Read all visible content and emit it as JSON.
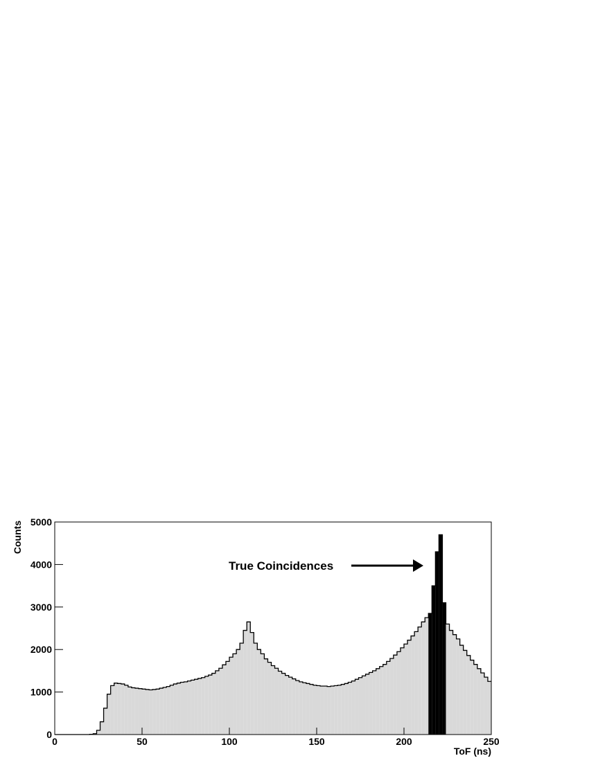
{
  "chart_data": {
    "type": "histogram",
    "xlabel": "ToF (ns)",
    "ylabel": "Counts",
    "annotation": "True Coincidences",
    "color": "#d9d9d9",
    "bins": [
      0,
      2,
      4,
      6,
      8,
      10,
      12,
      14,
      16,
      18,
      20,
      22,
      24,
      26,
      28,
      30,
      32,
      34,
      36,
      38,
      40,
      42,
      44,
      46,
      48,
      50,
      52,
      54,
      56,
      58,
      60,
      62,
      64,
      66,
      68,
      70,
      72,
      74,
      76,
      78,
      80,
      82,
      84,
      86,
      88,
      90,
      92,
      94,
      96,
      98,
      100,
      102,
      104,
      106,
      108,
      110,
      112,
      114,
      116,
      118,
      120,
      122,
      124,
      126,
      128,
      130,
      132,
      134,
      136,
      138,
      140,
      142,
      144,
      146,
      148,
      150,
      152,
      154,
      156,
      158,
      160,
      162,
      164,
      166,
      168,
      170,
      172,
      174,
      176,
      178,
      180,
      182,
      184,
      186,
      188,
      190,
      192,
      194,
      196,
      198,
      200,
      202,
      204,
      206,
      208,
      210,
      212,
      214,
      216,
      218,
      220,
      222,
      224,
      226,
      228,
      230,
      232,
      234,
      236,
      238,
      240,
      242,
      244,
      246,
      248,
      250
    ],
    "values": [
      0,
      0,
      0,
      0,
      0,
      0,
      0,
      0,
      0,
      0,
      5,
      20,
      100,
      300,
      620,
      950,
      1150,
      1210,
      1200,
      1190,
      1160,
      1120,
      1100,
      1090,
      1080,
      1070,
      1060,
      1050,
      1060,
      1070,
      1090,
      1110,
      1130,
      1160,
      1190,
      1210,
      1230,
      1240,
      1260,
      1280,
      1300,
      1320,
      1340,
      1370,
      1400,
      1440,
      1500,
      1560,
      1640,
      1720,
      1820,
      1900,
      2000,
      2150,
      2450,
      2650,
      2400,
      2150,
      2000,
      1900,
      1780,
      1700,
      1620,
      1560,
      1490,
      1440,
      1390,
      1350,
      1310,
      1270,
      1240,
      1220,
      1200,
      1180,
      1160,
      1150,
      1140,
      1140,
      1130,
      1140,
      1150,
      1160,
      1180,
      1200,
      1230,
      1260,
      1300,
      1340,
      1380,
      1420,
      1460,
      1500,
      1550,
      1600,
      1650,
      1720,
      1790,
      1870,
      1950,
      2040,
      2130,
      2220,
      2320,
      2420,
      2530,
      2650,
      2750,
      2850,
      3500,
      4300,
      4700,
      3100,
      2600,
      2450,
      2350,
      2250,
      2100,
      1980,
      1860,
      1750,
      1650,
      1550,
      1450,
      1350,
      1250
    ],
    "highlight": {
      "color": "#000000",
      "bins": [
        214,
        216,
        218,
        220,
        222,
        224
      ],
      "values": [
        2850,
        3500,
        4300,
        4700,
        3100
      ]
    },
    "xlim": [
      0,
      250
    ],
    "xticks": [
      0,
      50,
      100,
      150,
      200,
      250
    ],
    "ylim": [
      0,
      5000
    ],
    "yticks": [
      0,
      1000,
      2000,
      3000,
      4000,
      5000
    ]
  }
}
